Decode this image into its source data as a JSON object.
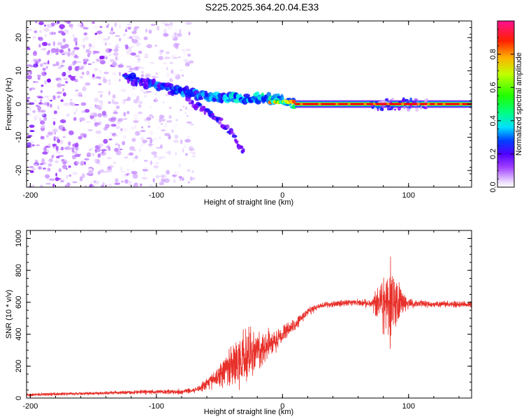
{
  "title": "S225.2025.364.20.04.E33",
  "chart_data": [
    {
      "type": "heatmap",
      "name": "spectrogram",
      "xlabel": "Height of straight line (km)",
      "ylabel": "Frequency (Hz)",
      "xlim": [
        -203,
        150
      ],
      "ylim": [
        -25,
        25
      ],
      "xticks": [
        -200,
        -100,
        0,
        100
      ],
      "xtick_labels": [
        "-200",
        "-100",
        "0",
        "100"
      ],
      "yticks": [
        20,
        10,
        0,
        -10,
        -20
      ],
      "ytick_labels": [
        "20",
        "10",
        "0",
        "-10",
        "-20"
      ],
      "colorbar": {
        "label": "Normalized spectral amplitude",
        "range": [
          0,
          1
        ],
        "ticks": [
          0.0,
          0.2,
          0.4,
          0.6,
          0.8
        ],
        "tick_labels": [
          "0.0",
          "0.2",
          "0.4",
          "0.6",
          "0.8"
        ],
        "colormap": [
          "#ffffff",
          "#cc99ff",
          "#8000ff",
          "#0000ff",
          "#00ffff",
          "#00ff00",
          "#ffff00",
          "#ff8000",
          "#ff0000",
          "#ff0080"
        ]
      },
      "features": {
        "noise_region_km": [
          -203,
          -75
        ],
        "chirp_path": [
          [
            -125,
            8
          ],
          [
            -105,
            6
          ],
          [
            -85,
            4
          ],
          [
            -70,
            3
          ],
          [
            -50,
            2
          ],
          [
            -30,
            2
          ],
          [
            -15,
            2
          ],
          [
            0,
            1
          ],
          [
            10,
            0
          ]
        ],
        "lower_branch": [
          [
            -75,
            1
          ],
          [
            -60,
            -2
          ],
          [
            -50,
            -5
          ],
          [
            -40,
            -9
          ],
          [
            -30,
            -15
          ]
        ],
        "tone_frequency_hz": 0,
        "tone_start_km": 10,
        "tone_end_km": 150,
        "tone_amplitude": 0.9
      }
    },
    {
      "type": "line",
      "name": "snr",
      "xlabel": "Height of straight line (km)",
      "ylabel": "SNR (10 * v/v)",
      "xlim": [
        -203,
        150
      ],
      "ylim": [
        0,
        1050
      ],
      "xticks": [
        -200,
        -100,
        0,
        100
      ],
      "xtick_labels": [
        "-200",
        "-100",
        "0",
        "100"
      ],
      "yticks": [
        0,
        200,
        400,
        600,
        800,
        1000
      ],
      "ytick_labels": [
        "0",
        "200",
        "400",
        "600",
        "800",
        "1000"
      ],
      "line_color": "#e8302a",
      "envelope": {
        "x": [
          -203,
          -180,
          -150,
          -120,
          -100,
          -80,
          -70,
          -60,
          -50,
          -40,
          -30,
          -20,
          -10,
          0,
          10,
          20,
          30,
          40,
          50,
          60,
          70,
          75,
          80,
          85,
          90,
          95,
          100,
          110,
          120,
          130,
          140,
          150
        ],
        "mean": [
          20,
          25,
          30,
          35,
          40,
          40,
          50,
          90,
          150,
          200,
          250,
          290,
          340,
          400,
          460,
          540,
          580,
          590,
          595,
          600,
          590,
          600,
          600,
          600,
          600,
          600,
          595,
          590,
          590,
          590,
          585,
          585
        ],
        "spread": [
          15,
          15,
          15,
          18,
          25,
          25,
          25,
          60,
          110,
          200,
          280,
          200,
          130,
          90,
          60,
          40,
          30,
          30,
          30,
          30,
          40,
          120,
          300,
          380,
          280,
          120,
          50,
          35,
          30,
          30,
          30,
          30
        ]
      }
    }
  ]
}
